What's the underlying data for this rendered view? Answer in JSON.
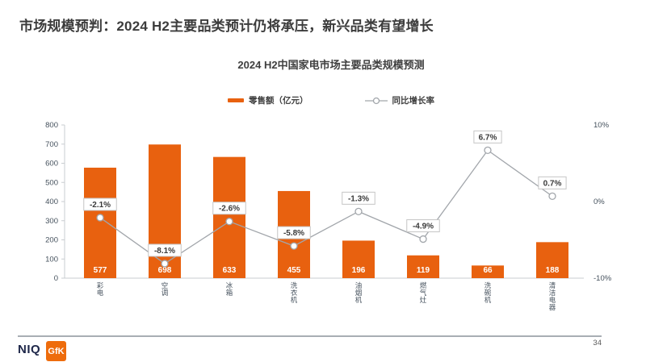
{
  "slide": {
    "title": "市场规模预判：2024 H2主要品类预计仍将承压，新兴品类有望增长",
    "page_number": "34"
  },
  "logos": {
    "niq": "NIQ",
    "gfk": "GfK"
  },
  "chart_data": {
    "type": "bar",
    "subtype": "bar-line-combo",
    "title": "2024 H2中国家电市场主要品类规模预测",
    "categories": [
      "彩电",
      "空调",
      "冰箱",
      "洗衣机",
      "油烟机",
      "燃气灶",
      "洗碗机",
      "清洁电器"
    ],
    "series": [
      {
        "name": "零售额（亿元）",
        "type": "bar",
        "axis": "left",
        "color": "#E8610F",
        "values": [
          577,
          698,
          633,
          455,
          196,
          119,
          66,
          188
        ]
      },
      {
        "name": "同比增长率",
        "type": "line",
        "axis": "right",
        "color": "#A2A6AB",
        "values": [
          -2.1,
          -8.1,
          -2.6,
          -5.8,
          -1.3,
          -4.9,
          6.7,
          0.7
        ],
        "labels": [
          "-2.1%",
          "-8.1%",
          "-2.6%",
          "-5.8%",
          "-1.3%",
          "-4.9%",
          "6.7%",
          "0.7%"
        ]
      }
    ],
    "left_axis": {
      "min": 0,
      "max": 800,
      "step": 100,
      "tick_values": [
        800,
        700,
        600,
        500,
        400,
        300,
        200,
        100,
        0
      ]
    },
    "right_axis": {
      "min": -10,
      "max": 10,
      "tick_labels": [
        "10%",
        "0%",
        "-10%"
      ],
      "tick_values": [
        10,
        0,
        -10
      ]
    },
    "legend_position": "top",
    "grid": false
  }
}
